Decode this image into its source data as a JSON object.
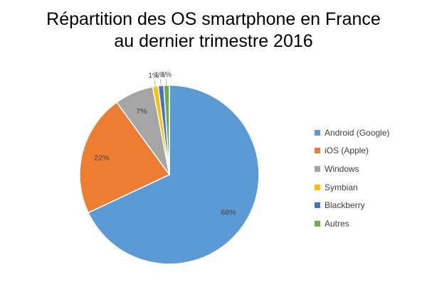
{
  "chart_data": {
    "type": "pie",
    "title_line1": "Répartition des OS smartphone en France",
    "title_line2": "au dernier trimestre 2016",
    "categories": [
      "Android (Google)",
      "iOS (Apple)",
      "Windows",
      "Symbian",
      "Blackberry",
      "Autres"
    ],
    "values": [
      68,
      22,
      7,
      1,
      1,
      1
    ],
    "labels": [
      "68%",
      "22%",
      "7%",
      "1%",
      "1%",
      "1%"
    ],
    "colors": [
      "#5B9BD5",
      "#ED7D31",
      "#A5A5A5",
      "#FFC000",
      "#4472C4",
      "#70AD47"
    ],
    "legend_position": "right"
  }
}
